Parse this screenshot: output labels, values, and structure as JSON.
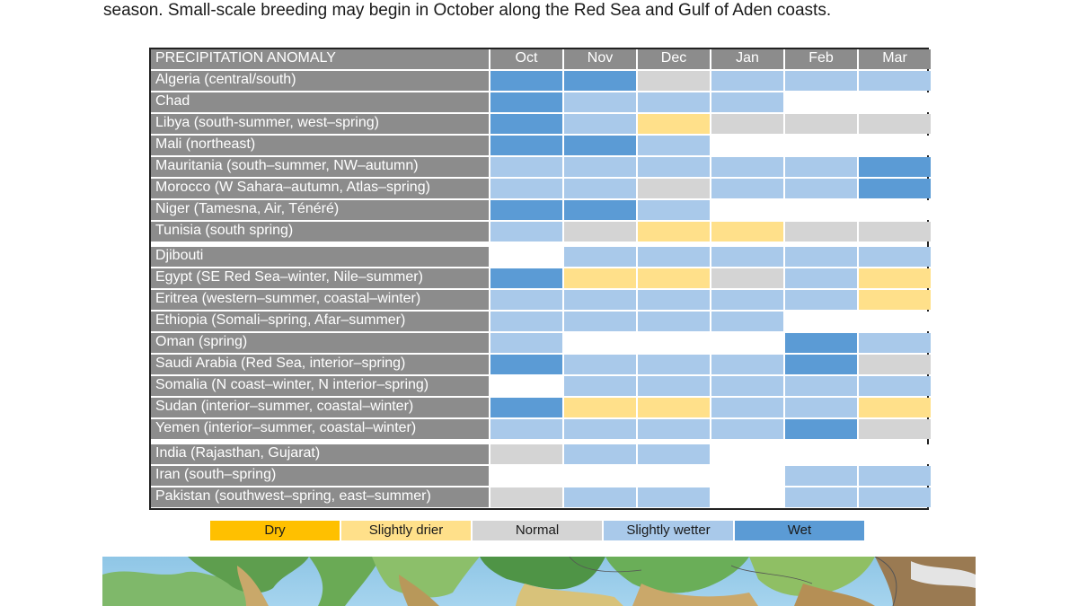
{
  "intro_text": "season. Small-scale breeding may begin in October along the Red Sea and Gulf of Aden coasts.",
  "table": {
    "header_label": "PRECIPITATION ANOMALY",
    "months": [
      "Oct",
      "Nov",
      "Dec",
      "Jan",
      "Feb",
      "Mar"
    ],
    "groups": [
      {
        "rows": [
          {
            "label": "Algeria (central/south)",
            "values": [
              "wet",
              "wet",
              "normal",
              "slightly_wetter",
              "slightly_wetter",
              "slightly_wetter"
            ]
          },
          {
            "label": "Chad",
            "values": [
              "wet",
              "slightly_wetter",
              "slightly_wetter",
              "slightly_wetter",
              "none",
              "none"
            ]
          },
          {
            "label": "Libya (south-summer, west–spring)",
            "values": [
              "wet",
              "slightly_wetter",
              "slightly_drier",
              "normal",
              "normal",
              "normal"
            ]
          },
          {
            "label": "Mali (northeast)",
            "values": [
              "wet",
              "wet",
              "slightly_wetter",
              "none",
              "none",
              "none"
            ]
          },
          {
            "label": "Mauritania (south–summer, NW–autumn)",
            "values": [
              "slightly_wetter",
              "slightly_wetter",
              "slightly_wetter",
              "slightly_wetter",
              "slightly_wetter",
              "wet"
            ]
          },
          {
            "label": "Morocco (W Sahara–autumn, Atlas–spring)",
            "values": [
              "slightly_wetter",
              "slightly_wetter",
              "normal",
              "slightly_wetter",
              "slightly_wetter",
              "wet"
            ]
          },
          {
            "label": "Niger (Tamesna, Air, Ténéré)",
            "values": [
              "wet",
              "wet",
              "slightly_wetter",
              "none",
              "none",
              "none"
            ]
          },
          {
            "label": "Tunisia (south spring)",
            "values": [
              "slightly_wetter",
              "normal",
              "slightly_drier",
              "slightly_drier",
              "normal",
              "normal"
            ]
          }
        ]
      },
      {
        "rows": [
          {
            "label": "Djibouti",
            "values": [
              "none",
              "slightly_wetter",
              "slightly_wetter",
              "slightly_wetter",
              "slightly_wetter",
              "slightly_wetter"
            ]
          },
          {
            "label": "Egypt (SE Red Sea–winter, Nile–summer)",
            "values": [
              "wet",
              "slightly_drier",
              "slightly_drier",
              "normal",
              "slightly_wetter",
              "slightly_drier"
            ]
          },
          {
            "label": "Eritrea (western–summer, coastal–winter)",
            "values": [
              "slightly_wetter",
              "slightly_wetter",
              "slightly_wetter",
              "slightly_wetter",
              "slightly_wetter",
              "slightly_drier"
            ]
          },
          {
            "label": "Ethiopia (Somali–spring, Afar–summer)",
            "values": [
              "slightly_wetter",
              "slightly_wetter",
              "slightly_wetter",
              "slightly_wetter",
              "none",
              "none"
            ]
          },
          {
            "label": "Oman (spring)",
            "values": [
              "slightly_wetter",
              "none",
              "none",
              "none",
              "wet",
              "slightly_wetter"
            ]
          },
          {
            "label": "Saudi Arabia (Red Sea, interior–spring)",
            "values": [
              "wet",
              "slightly_wetter",
              "slightly_wetter",
              "slightly_wetter",
              "wet",
              "normal"
            ]
          },
          {
            "label": "Somalia (N coast–winter, N interior–spring)",
            "values": [
              "none",
              "slightly_wetter",
              "slightly_wetter",
              "slightly_wetter",
              "slightly_wetter",
              "slightly_wetter"
            ]
          },
          {
            "label": "Sudan (interior–summer, coastal–winter)",
            "values": [
              "wet",
              "slightly_drier",
              "slightly_drier",
              "slightly_wetter",
              "slightly_wetter",
              "slightly_drier"
            ]
          },
          {
            "label": "Yemen (interior–summer, coastal–winter)",
            "values": [
              "slightly_wetter",
              "slightly_wetter",
              "slightly_wetter",
              "slightly_wetter",
              "wet",
              "normal"
            ]
          }
        ]
      },
      {
        "rows": [
          {
            "label": "India (Rajasthan, Gujarat)",
            "values": [
              "normal",
              "slightly_wetter",
              "slightly_wetter",
              "none",
              "none",
              "none"
            ]
          },
          {
            "label": "Iran (south–spring)",
            "values": [
              "none",
              "none",
              "none",
              "none",
              "slightly_wetter",
              "slightly_wetter"
            ]
          },
          {
            "label": "Pakistan (southwest–spring, east–summer)",
            "values": [
              "normal",
              "slightly_wetter",
              "slightly_wetter",
              "none",
              "slightly_wetter",
              "slightly_wetter"
            ]
          }
        ]
      }
    ]
  },
  "legend": [
    {
      "key": "dry",
      "label": "Dry",
      "color": "#ffc000"
    },
    {
      "key": "slightly_drier",
      "label": "Slightly drier",
      "color": "#ffe08a"
    },
    {
      "key": "normal",
      "label": "Normal",
      "color": "#d4d4d4"
    },
    {
      "key": "slightly_wetter",
      "label": "Slightly wetter",
      "color": "#a9c9ea"
    },
    {
      "key": "wet",
      "label": "Wet",
      "color": "#5b9bd5"
    }
  ],
  "colors": {
    "header_bg": "#8c8c8c",
    "none": "#ffffff"
  }
}
